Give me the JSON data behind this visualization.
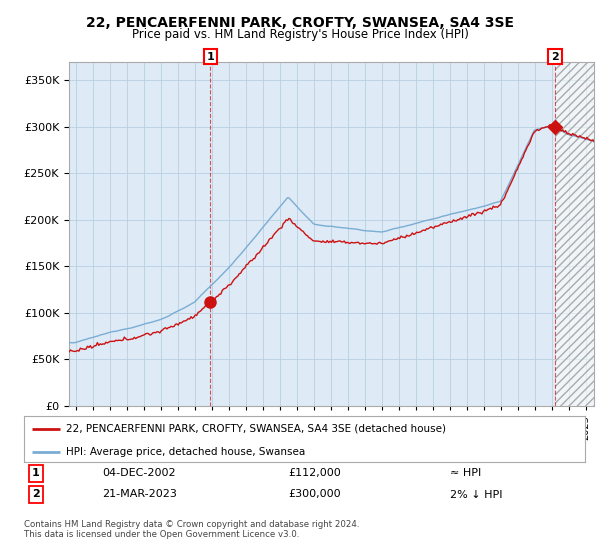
{
  "title": "22, PENCAERFENNI PARK, CROFTY, SWANSEA, SA4 3SE",
  "subtitle": "Price paid vs. HM Land Registry's House Price Index (HPI)",
  "legend_line1": "22, PENCAERFENNI PARK, CROFTY, SWANSEA, SA4 3SE (detached house)",
  "legend_line2": "HPI: Average price, detached house, Swansea",
  "annotation1_label": "1",
  "annotation1_date": "04-DEC-2002",
  "annotation1_price": "£112,000",
  "annotation1_hpi": "≈ HPI",
  "annotation2_label": "2",
  "annotation2_date": "21-MAR-2023",
  "annotation2_price": "£300,000",
  "annotation2_hpi": "2% ↓ HPI",
  "footer": "Contains HM Land Registry data © Crown copyright and database right 2024.\nThis data is licensed under the Open Government Licence v3.0.",
  "hpi_color": "#7aadd4",
  "price_color": "#cc1111",
  "sale1_marker_color": "#cc1111",
  "sale2_marker_color": "#cc1111",
  "ylim": [
    0,
    370000
  ],
  "yticks": [
    0,
    50000,
    100000,
    150000,
    200000,
    250000,
    300000,
    350000
  ],
  "background_color": "#ffffff",
  "chart_bg_color": "#deeaf5",
  "grid_color": "#b8cfe0",
  "sale1_year": 2002.92,
  "sale1_price": 112000,
  "sale2_year": 2023.21,
  "sale2_price": 300000,
  "xmin": 1994.6,
  "xmax": 2025.5
}
